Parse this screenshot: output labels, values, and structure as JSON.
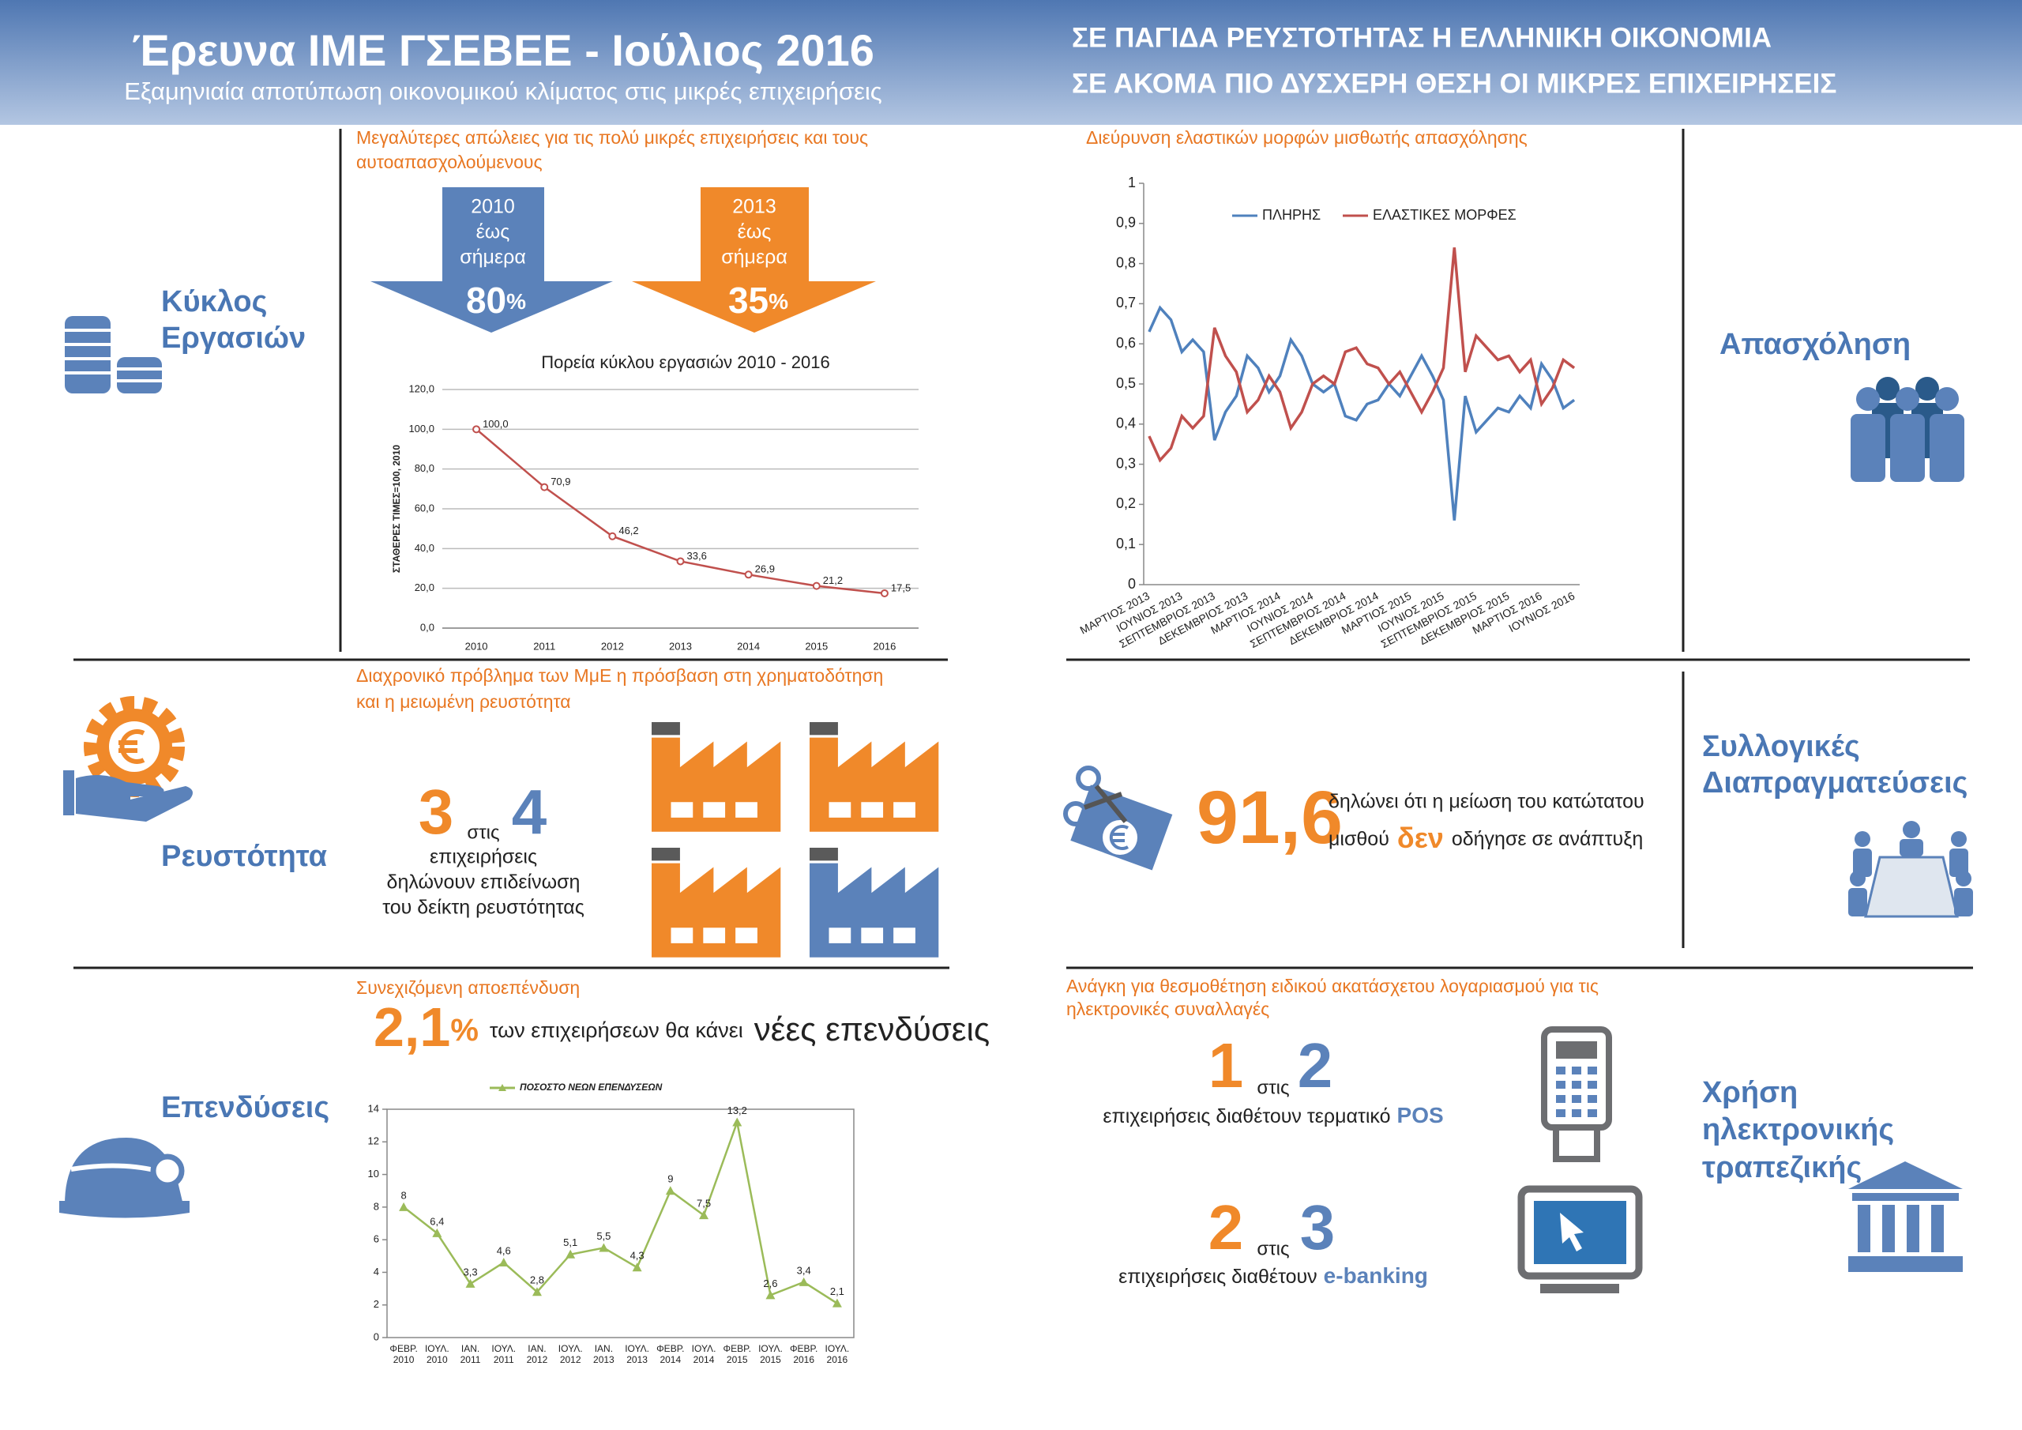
{
  "header": {
    "title": "Έρευνα ΙΜΕ ΓΣΕΒΕΕ - Ιούλιος 2016",
    "subtitle": "Εξαμηνιαία αποτύπωση οικονομικού κλίματος στις μικρές επιχειρήσεις",
    "headline": [
      "ΣΕ ΠΑΓΙΔΑ ΡΕΥΣΤΟΤΗΤΑΣ Η ΕΛΛΗΝΙΚΗ ΟΙΚΟΝΟΜΙΑ",
      "ΣΕ ΑΚΟΜΑ ΠΙΟ ΔΥΣΧΕΡΗ ΘΕΣΗ ΟΙ ΜΙΚΡΕΣ ΕΠΙΧΕΙΡΗΣΕΙΣ"
    ]
  },
  "turnover": {
    "label": [
      "Κύκλος",
      "Εργασιών"
    ],
    "heading": [
      "Μεγαλύτερες απώλειες για τις πολύ μικρές επιχειρήσεις και τους",
      "αυτοαπασχολούμενους"
    ],
    "arrows": [
      {
        "lines": [
          "2010",
          "έως",
          "σήμερα"
        ],
        "value": "80",
        "unit": "%"
      },
      {
        "lines": [
          "2013",
          "έως",
          "σήμερα"
        ],
        "value": "35",
        "unit": "%"
      }
    ]
  },
  "liquidity": {
    "label": "Ρευστότητα",
    "heading": [
      "Διαχρονικό πρόβλημα των ΜμΕ η πρόσβαση στη χρηματοδότηση",
      "και η μειωμένη ρευστότητα"
    ],
    "numerator": "3",
    "connector": "στις",
    "denominator": "4",
    "text": [
      "επιχειρήσεις",
      "δηλώνουν επιδείνωση",
      "του δείκτη ρευστότητας"
    ]
  },
  "investment": {
    "label": "Επενδύσεις",
    "heading": "Συνεχιζόμενη αποεπένδυση",
    "value": "2,1",
    "unit": "%",
    "text": "των επιχειρήσεων θα κάνει",
    "emphasis": "νέες επενδύσεις"
  },
  "employment": {
    "label": "Απασχόληση"
  },
  "bargaining": {
    "label": [
      "Συλλογικές",
      "Διαπραγματεύσεις"
    ],
    "value": "91,6",
    "text": "δηλώνει ότι η μείωση του κατώτατου",
    "text2": "μισθού",
    "emphasis": "δεν",
    "text3": "οδήγησε σε ανάπτυξη"
  },
  "ebanking": {
    "label": [
      "Χρήση",
      "ηλεκτρονικής",
      "τραπεζικής"
    ],
    "heading": [
      "Ανάγκη για θεσμοθέτηση ειδικού ακατάσχετου λογαριασμού για τις",
      "ηλεκτρονικές συναλλαγές"
    ],
    "stats": [
      {
        "a": "1",
        "connector": "στις",
        "b": "2",
        "text": "επιχειρήσεις διαθέτουν τερματικό",
        "emphasis": "POS"
      },
      {
        "a": "2",
        "connector": "στις",
        "b": "3",
        "text": "επιχειρήσεις διαθέτουν",
        "emphasis": "e-banking"
      }
    ]
  },
  "chart_data": [
    {
      "type": "line",
      "title": "Πορεία κύκλου εργασιών 2010 - 2016",
      "ylabel": "ΣΤΑΘΕΡΕΣ ΤΙΜΕΣ=100, 2010",
      "categories": [
        "2010",
        "2011",
        "2012",
        "2013",
        "2014",
        "2015",
        "2016"
      ],
      "values": [
        100,
        70.9,
        46.2,
        33.6,
        26.9,
        21.2,
        17.5
      ],
      "value_labels": [
        "100,0",
        "70,9",
        "46,2",
        "33,6",
        "26,9",
        "21,2",
        "17,5"
      ],
      "color": "#c0504d",
      "marker": "circle",
      "grid": true,
      "ylim": [
        0,
        120
      ],
      "yticks": [
        {
          "value": 0,
          "label": "0,0"
        },
        {
          "value": 20,
          "label": "20,0"
        },
        {
          "value": 40,
          "label": "40,0"
        },
        {
          "value": 60,
          "label": "60,0"
        },
        {
          "value": 80,
          "label": "80,0"
        },
        {
          "value": 100,
          "label": "100,0"
        },
        {
          "value": 120,
          "label": "120,0"
        }
      ]
    },
    {
      "type": "line",
      "title": "Διεύρυνση ελαστικών μορφών μισθωτής απασχόλησης",
      "categories": [
        "ΜΑΡΤΙΟΣ 2013",
        null,
        null,
        "ΙΟΥΝΙΟΣ 2013",
        null,
        null,
        "ΣΕΠΤΕΜΒΡΙΟΣ 2013",
        null,
        null,
        "ΔΕΚΕΜΒΡΙΟΣ 2013",
        null,
        null,
        "ΜΑΡΤΙΟΣ 2014",
        null,
        null,
        "ΙΟΥΝΙΟΣ 2014",
        null,
        null,
        "ΣΕΠΤΕΜΒΡΙΟΣ 2014",
        null,
        null,
        "ΔΕΚΕΜΒΡΙΟΣ 2014",
        null,
        null,
        "ΜΑΡΤΙΟΣ 2015",
        null,
        null,
        "ΙΟΥΝΙΟΣ 2015",
        null,
        null,
        "ΣΕΠΤΕΜΒΡΙΟΣ 2015",
        null,
        null,
        "ΔΕΚΕΜΒΡΙΟΣ 2015",
        null,
        null,
        "ΜΑΡΤΙΟΣ 2016",
        null,
        null,
        "ΙΟΥΝΙΟΣ 2016"
      ],
      "series": [
        {
          "name": "ΠΛΗΡΗΣ",
          "color": "#4f81bd",
          "values": [
            0.63,
            0.69,
            0.66,
            0.58,
            0.61,
            0.58,
            0.36,
            0.43,
            0.47,
            0.57,
            0.54,
            0.48,
            0.52,
            0.61,
            0.57,
            0.5,
            0.48,
            0.5,
            0.42,
            0.41,
            0.45,
            0.46,
            0.5,
            0.47,
            0.52,
            0.57,
            0.52,
            0.46,
            0.16,
            0.47,
            0.38,
            0.41,
            0.44,
            0.43,
            0.47,
            0.44,
            0.55,
            0.51,
            0.44,
            0.46
          ]
        },
        {
          "name": "ΕΛΑΣΤΙΚΕΣ ΜΟΡΦΕΣ",
          "color": "#c0504d",
          "values": [
            0.37,
            0.31,
            0.34,
            0.42,
            0.39,
            0.42,
            0.64,
            0.57,
            0.53,
            0.43,
            0.46,
            0.52,
            0.48,
            0.39,
            0.43,
            0.5,
            0.52,
            0.5,
            0.58,
            0.59,
            0.55,
            0.54,
            0.5,
            0.53,
            0.48,
            0.43,
            0.48,
            0.54,
            0.84,
            0.53,
            0.62,
            0.59,
            0.56,
            0.57,
            0.53,
            0.56,
            0.45,
            0.49,
            0.56,
            0.54
          ]
        }
      ],
      "legend": "top",
      "grid": false,
      "ylim": [
        0,
        1
      ],
      "yticks": [
        0,
        {
          "value": 0.1,
          "label": "0,1"
        },
        {
          "value": 0.2,
          "label": "0,2"
        },
        {
          "value": 0.3,
          "label": "0,3"
        },
        {
          "value": 0.4,
          "label": "0,4"
        },
        {
          "value": 0.5,
          "label": "0,5"
        },
        {
          "value": 0.6,
          "label": "0,6"
        },
        {
          "value": 0.7,
          "label": "0,7"
        },
        {
          "value": 0.8,
          "label": "0,8"
        },
        {
          "value": 0.9,
          "label": "0,9"
        },
        1
      ]
    },
    {
      "type": "line",
      "categories": [
        "ΦΕΒΡ. 2010",
        "ΙΟΥΛ. 2010",
        "ΙΑΝ. 2011",
        "ΙΟΥΛ. 2011",
        "ΙΑΝ. 2012",
        "ΙΟΥΛ. 2012",
        "ΙΑΝ. 2013",
        "ΙΟΥΛ. 2013",
        "ΦΕΒΡ. 2014",
        "ΙΟΥΛ. 2014",
        "ΦΕΒΡ. 2015",
        "ΙΟΥΛ. 2015",
        "ΦΕΒΡ. 2016",
        "ΙΟΥΛ. 2016"
      ],
      "series": [
        {
          "name": "ΠΟΣΟΣΤΟ ΝΕΩΝ ΕΠΕΝΔΥΣΕΩΝ",
          "color": "#9bbb59",
          "values": [
            8,
            6.4,
            3.3,
            4.6,
            2.8,
            5.1,
            5.5,
            4.3,
            9,
            7.5,
            13.2,
            2.6,
            3.4,
            2.1
          ],
          "value_labels": [
            "8",
            "6,4",
            "3,3",
            "4,6",
            "2,8",
            "5,1",
            "5,5",
            "4,3",
            "9",
            "7,5",
            "13,2",
            "2,6",
            "3,4",
            "2,1"
          ]
        }
      ],
      "marker": "triangle",
      "legend": "top",
      "grid": false,
      "ylim": [
        0,
        14
      ],
      "yticks": [
        0,
        2,
        4,
        6,
        8,
        10,
        12,
        14
      ]
    }
  ]
}
